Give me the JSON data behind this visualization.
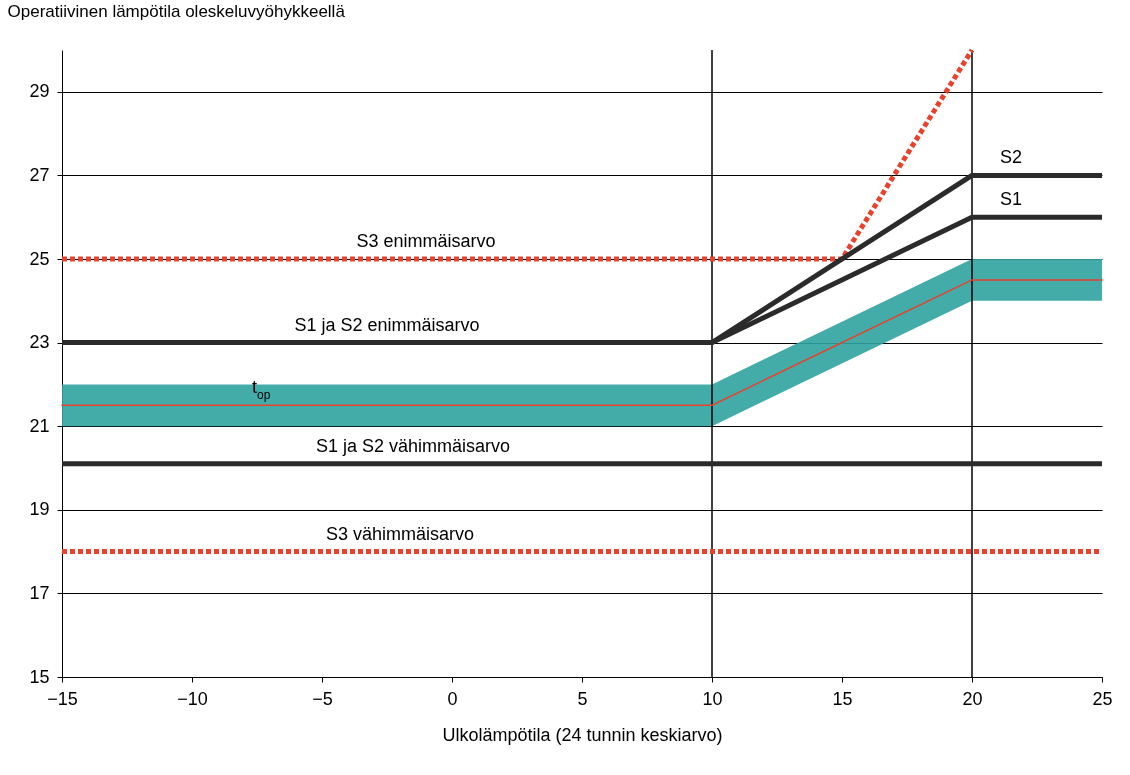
{
  "chart_data": {
    "type": "line",
    "ylabel": "Operatiivinen lämpötila oleskeluvyöhykkeellä",
    "xlabel": "Ulkolämpötila (24 tunnin keskiarvo)",
    "xlim": [
      -15,
      25
    ],
    "xticks": [
      -15,
      -10,
      -5,
      0,
      5,
      10,
      15,
      20,
      25
    ],
    "ylim": [
      15,
      30
    ],
    "yticks": [
      15,
      17,
      19,
      21,
      23,
      25,
      27,
      29
    ],
    "grid": "y",
    "series": [
      {
        "color": "#e8412c",
        "line_style": "dotted",
        "x": [
          -15,
          15,
          20
        ],
        "values": [
          25,
          25,
          30
        ]
      },
      {
        "color": "#2b2b2b",
        "x": [
          -15,
          10,
          20,
          25
        ],
        "values": [
          23,
          23,
          27,
          27
        ]
      },
      {
        "color": "#2b2b2b",
        "x": [
          10,
          20,
          25
        ],
        "values": [
          23,
          26,
          26
        ]
      },
      {
        "color": "#e8412c",
        "x": [
          -15,
          10,
          20,
          25
        ],
        "values": [
          21.5,
          21.5,
          24.5,
          24.5
        ],
        "lower": [
          21,
          21,
          24,
          24
        ],
        "upper": [
          22,
          22,
          25,
          25
        ]
      },
      {
        "color": "#2b2b2b",
        "x": [
          -15,
          25
        ],
        "values": [
          20.1,
          20.1
        ]
      },
      {
        "color": "#e8412c",
        "line_style": "dotted",
        "x": [
          -15,
          25
        ],
        "values": [
          18,
          18
        ]
      }
    ],
    "annotations": [
      {
        "text": "S3 enimmäisarvo",
        "x": -1,
        "y": 25
      },
      {
        "text": "S1 ja S2 enimmäisarvo",
        "x": -2.5,
        "y": 23
      },
      {
        "text": "t$_{op}$",
        "x": -7.5,
        "y": 21.5
      },
      {
        "text": "S1 ja S2 vähimmäisarvo",
        "x": -1.5,
        "y": 20.1
      },
      {
        "text": "S3 vähimmäisarvo",
        "x": -2,
        "y": 18
      },
      {
        "text": "S2",
        "x": 21.5,
        "y": 27
      },
      {
        "text": "S1",
        "x": 21.5,
        "y": 26
      }
    ],
    "ref_lines": [
      {
        "axis": "x",
        "value": 10
      },
      {
        "axis": "x",
        "value": 20
      }
    ]
  }
}
